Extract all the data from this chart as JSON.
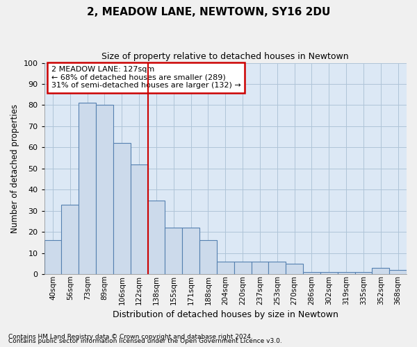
{
  "title": "2, MEADOW LANE, NEWTOWN, SY16 2DU",
  "subtitle": "Size of property relative to detached houses in Newtown",
  "xlabel": "Distribution of detached houses by size in Newtown",
  "ylabel": "Number of detached properties",
  "categories": [
    "40sqm",
    "56sqm",
    "73sqm",
    "89sqm",
    "106sqm",
    "122sqm",
    "138sqm",
    "155sqm",
    "171sqm",
    "188sqm",
    "204sqm",
    "220sqm",
    "237sqm",
    "253sqm",
    "270sqm",
    "286sqm",
    "302sqm",
    "319sqm",
    "335sqm",
    "352sqm",
    "368sqm"
  ],
  "values": [
    16,
    33,
    81,
    80,
    62,
    52,
    35,
    22,
    22,
    16,
    6,
    6,
    6,
    6,
    5,
    1,
    1,
    1,
    1,
    3,
    2
  ],
  "bar_color": "#ccdaeb",
  "bar_edge_color": "#5580b0",
  "red_line_x": 5.5,
  "annotation_line1": "2 MEADOW LANE: 127sqm",
  "annotation_line2": "← 68% of detached houses are smaller (289)",
  "annotation_line3": "31% of semi-detached houses are larger (132) →",
  "annotation_box_color": "#ffffff",
  "annotation_box_edge": "#cc0000",
  "red_line_color": "#cc0000",
  "grid_color": "#afc4d8",
  "bg_color": "#dce8f5",
  "fig_bg_color": "#f0f0f0",
  "ylim": [
    0,
    100
  ],
  "yticks": [
    0,
    10,
    20,
    30,
    40,
    50,
    60,
    70,
    80,
    90,
    100
  ],
  "footnote1": "Contains HM Land Registry data © Crown copyright and database right 2024.",
  "footnote2": "Contains public sector information licensed under the Open Government Licence v3.0."
}
